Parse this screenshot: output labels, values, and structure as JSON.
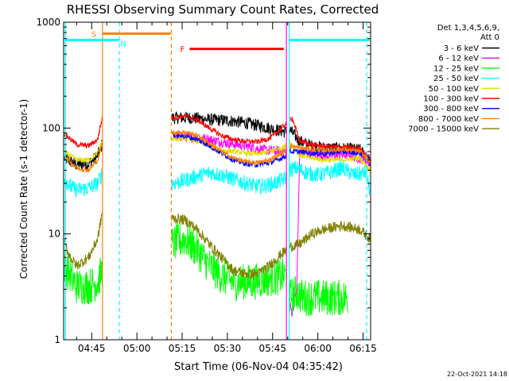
{
  "chart_data": {
    "type": "line",
    "title": "RHESSI Observing Summary Count Rates, Corrected",
    "xlabel": "Start Time (06-Nov-04 04:35:42)",
    "ylabel": "Corrected Count Rate (s-1 detector-1)",
    "y_scale": "log",
    "ylim": [
      1,
      1000
    ],
    "xlim_min": [
      35.7,
      137.5
    ],
    "x_ticks": [
      {
        "min": 45,
        "label": "04:45"
      },
      {
        "min": 60,
        "label": "05:00"
      },
      {
        "min": 75,
        "label": "05:15"
      },
      {
        "min": 90,
        "label": "05:30"
      },
      {
        "min": 105,
        "label": "05:45"
      },
      {
        "min": 120,
        "label": "06:00"
      },
      {
        "min": 135,
        "label": "06:15"
      }
    ],
    "y_ticks": [
      {
        "value": 1,
        "label": "1"
      },
      {
        "value": 10,
        "label": "10"
      },
      {
        "value": 100,
        "label": "100"
      },
      {
        "value": 1000,
        "label": "1000"
      }
    ],
    "legend_header": [
      "Det 1,3,4,5,6,9,",
      "Att 0"
    ],
    "legend_position": "top-right, outside plot",
    "footer_date": "22-Oct-2021 14:18",
    "gaps": [
      [
        48.6,
        71.5
      ],
      [
        109.6,
        110.5
      ]
    ],
    "series": [
      {
        "name": "3 - 6 keV",
        "color": "#000000",
        "noise": 0.12,
        "points": [
          [
            36,
            52
          ],
          [
            40,
            45
          ],
          [
            44,
            46
          ],
          [
            47,
            55
          ],
          [
            48.5,
            70
          ],
          [
            72,
            125
          ],
          [
            78,
            125
          ],
          [
            84,
            120
          ],
          [
            90,
            118
          ],
          [
            96,
            112
          ],
          [
            102,
            103
          ],
          [
            107,
            95
          ],
          [
            109.5,
            92
          ],
          [
            110.5,
            98
          ],
          [
            114,
            75
          ],
          [
            118,
            68
          ],
          [
            122,
            65
          ],
          [
            128,
            64
          ],
          [
            134,
            62
          ],
          [
            137.3,
            48
          ]
        ]
      },
      {
        "name": "6 - 12 keV",
        "color": "#ff00ff",
        "noise": 0.1,
        "points": [
          [
            72,
            85
          ],
          [
            78,
            82
          ],
          [
            84,
            78
          ],
          [
            90,
            72
          ],
          [
            96,
            68
          ],
          [
            102,
            62
          ],
          [
            108,
            60
          ],
          [
            109.5,
            60
          ],
          [
            110.5,
            2.2
          ],
          [
            111.5,
            1.8
          ],
          [
            112.5,
            2.5
          ],
          [
            113,
            2.8
          ],
          [
            114,
            60
          ],
          [
            122,
            55
          ],
          [
            130,
            56
          ],
          [
            137.3,
            48
          ]
        ]
      },
      {
        "name": "12 - 25 keV",
        "color": "#00ff00",
        "noise": 0.35,
        "points": [
          [
            36,
            5
          ],
          [
            38,
            4
          ],
          [
            40,
            3.2
          ],
          [
            44,
            3.2
          ],
          [
            47,
            3.5
          ],
          [
            48.5,
            4.5
          ],
          [
            72,
            8
          ],
          [
            76,
            9
          ],
          [
            80,
            7
          ],
          [
            84,
            5
          ],
          [
            88,
            4
          ],
          [
            92,
            3.5
          ],
          [
            98,
            3.5
          ],
          [
            104,
            3.8
          ],
          [
            109.5,
            4
          ],
          [
            110.5,
            2.5
          ],
          [
            113,
            2.8
          ],
          [
            115,
            2.5
          ],
          [
            123,
            2.5
          ],
          [
            130,
            2.5
          ]
        ]
      },
      {
        "name": "25 - 50 keV",
        "color": "#00ffff",
        "noise": 0.15,
        "points": [
          [
            36,
            33
          ],
          [
            38,
            28
          ],
          [
            40,
            26
          ],
          [
            44,
            27
          ],
          [
            47,
            30
          ],
          [
            48.5,
            38
          ],
          [
            72,
            30
          ],
          [
            76,
            32
          ],
          [
            80,
            35
          ],
          [
            84,
            38
          ],
          [
            88,
            36
          ],
          [
            92,
            33
          ],
          [
            96,
            30
          ],
          [
            100,
            28
          ],
          [
            104,
            29
          ],
          [
            108,
            32
          ],
          [
            109.5,
            34
          ],
          [
            110.5,
            40
          ],
          [
            113,
            42
          ],
          [
            116,
            38
          ],
          [
            120,
            36
          ],
          [
            124,
            38
          ],
          [
            128,
            42
          ],
          [
            132,
            36
          ],
          [
            136,
            38
          ],
          [
            137.3,
            25
          ]
        ]
      },
      {
        "name": "50 - 100 keV",
        "color": "#e0e000",
        "noise": 0.05,
        "points": [
          [
            36,
            60
          ],
          [
            40,
            50
          ],
          [
            44,
            50
          ],
          [
            47,
            58
          ],
          [
            48.5,
            75
          ],
          [
            72,
            78
          ],
          [
            76,
            80
          ],
          [
            80,
            75
          ],
          [
            84,
            68
          ],
          [
            88,
            62
          ],
          [
            92,
            60
          ],
          [
            96,
            58
          ],
          [
            100,
            57
          ],
          [
            104,
            60
          ],
          [
            108,
            65
          ],
          [
            109.5,
            68
          ],
          [
            110.5,
            75
          ],
          [
            114,
            55
          ],
          [
            118,
            52
          ],
          [
            122,
            50
          ],
          [
            128,
            50
          ],
          [
            134,
            52
          ],
          [
            137.3,
            40
          ]
        ]
      },
      {
        "name": "100 - 300 keV",
        "color": "#ff0000",
        "noise": 0.05,
        "points": [
          [
            36,
            88
          ],
          [
            40,
            70
          ],
          [
            44,
            68
          ],
          [
            47,
            78
          ],
          [
            48.5,
            125
          ],
          [
            72,
            125
          ],
          [
            76,
            130
          ],
          [
            80,
            120
          ],
          [
            84,
            100
          ],
          [
            88,
            85
          ],
          [
            92,
            78
          ],
          [
            96,
            75
          ],
          [
            100,
            74
          ],
          [
            104,
            80
          ],
          [
            108,
            100
          ],
          [
            109.5,
            110
          ],
          [
            110.5,
            120
          ],
          [
            111.5,
            125
          ],
          [
            114,
            75
          ],
          [
            118,
            70
          ],
          [
            122,
            67
          ],
          [
            128,
            66
          ],
          [
            134,
            64
          ],
          [
            137.3,
            52
          ]
        ]
      },
      {
        "name": "300 - 800 keV",
        "color": "#0000ff",
        "noise": 0.05,
        "points": [
          [
            72,
            85
          ],
          [
            76,
            84
          ],
          [
            80,
            78
          ],
          [
            84,
            68
          ],
          [
            88,
            58
          ],
          [
            92,
            50
          ],
          [
            96,
            46
          ],
          [
            100,
            45
          ],
          [
            104,
            47
          ],
          [
            108,
            52
          ],
          [
            109.5,
            55
          ],
          [
            110.5,
            60
          ],
          [
            114,
            60
          ],
          [
            118,
            58
          ],
          [
            122,
            57
          ],
          [
            128,
            60
          ],
          [
            134,
            58
          ],
          [
            137.3,
            50
          ]
        ]
      },
      {
        "name": "800 - 7000 keV",
        "color": "#ff8000",
        "noise": 0.05,
        "points": [
          [
            36,
            55
          ],
          [
            40,
            42
          ],
          [
            44,
            40
          ],
          [
            47,
            50
          ],
          [
            48.5,
            70
          ],
          [
            72,
            90
          ],
          [
            76,
            92
          ],
          [
            80,
            85
          ],
          [
            84,
            72
          ],
          [
            88,
            60
          ],
          [
            92,
            52
          ],
          [
            96,
            48
          ],
          [
            100,
            47
          ],
          [
            104,
            50
          ],
          [
            108,
            58
          ],
          [
            109.5,
            62
          ],
          [
            110.5,
            68
          ],
          [
            114,
            65
          ],
          [
            118,
            63
          ],
          [
            122,
            62
          ],
          [
            128,
            63
          ],
          [
            134,
            60
          ],
          [
            137.3,
            48
          ]
        ]
      },
      {
        "name": "7000 - 15000 keV",
        "color": "#808000",
        "noise": 0.1,
        "points": [
          [
            36,
            8
          ],
          [
            38,
            6
          ],
          [
            40,
            5
          ],
          [
            44,
            6
          ],
          [
            47,
            9
          ],
          [
            48.5,
            16
          ],
          [
            72,
            14
          ],
          [
            76,
            13.5
          ],
          [
            80,
            11
          ],
          [
            84,
            8
          ],
          [
            88,
            6
          ],
          [
            92,
            4.5
          ],
          [
            96,
            4.2
          ],
          [
            100,
            4.2
          ],
          [
            104,
            5
          ],
          [
            108,
            6.5
          ],
          [
            109.5,
            7
          ],
          [
            110.5,
            7.5
          ],
          [
            114,
            8
          ],
          [
            118,
            10
          ],
          [
            122,
            11
          ],
          [
            128,
            12
          ],
          [
            134,
            11
          ],
          [
            137.3,
            9
          ]
        ]
      }
    ],
    "mode_bars": [
      {
        "label": "S",
        "color": "#ff8000",
        "x0": 48.6,
        "x1": 71.2,
        "y": 780
      },
      {
        "label": "N",
        "color": "#00ffff",
        "x0": 36.2,
        "x1": 54.0,
        "y": 680
      },
      {
        "label": "F",
        "color": "#ff0000",
        "x0": 77.5,
        "x1": 108.7,
        "y": 560
      },
      {
        "label": "",
        "color": "#00ffff",
        "x0": 110.5,
        "x1": 137.2,
        "y": 680
      }
    ],
    "vlines": [
      {
        "x": 36.3,
        "color": "#00ffff",
        "dash": false
      },
      {
        "x": 54.2,
        "color": "#00ffff",
        "dash": true
      },
      {
        "x": 48.6,
        "color": "#ff8000",
        "dash": false
      },
      {
        "x": 71.4,
        "color": "#ff8000",
        "dash": true
      },
      {
        "x": 110.5,
        "color": "#00ffff",
        "dash": false
      },
      {
        "x": 136.2,
        "color": "#00ffff",
        "dash": true
      },
      {
        "x": 109.6,
        "color": "#ff00ff",
        "dash": false
      }
    ]
  }
}
